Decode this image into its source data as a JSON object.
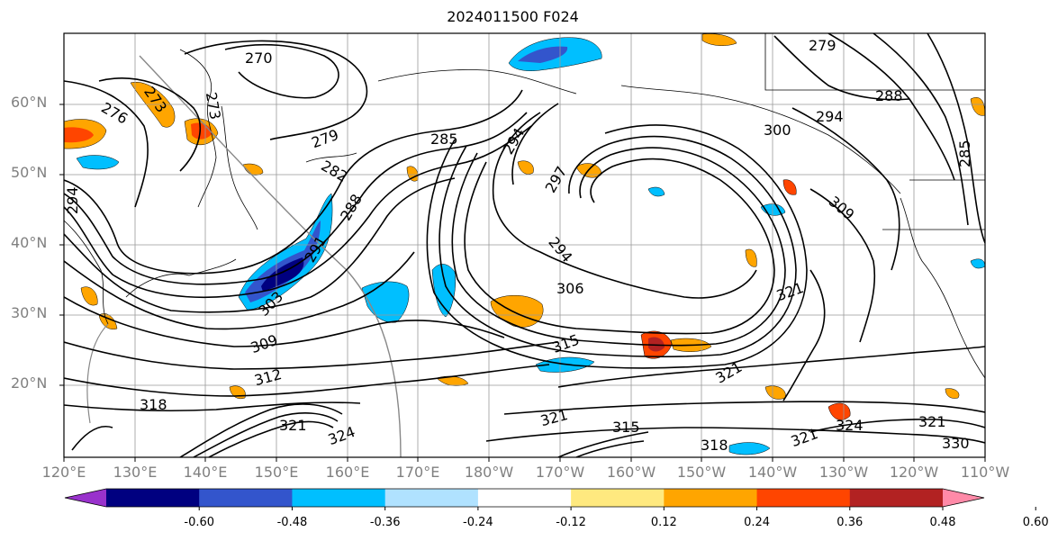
{
  "title": "2024011500 F024",
  "lat_labels": [
    "60°N",
    "50°N",
    "40°N",
    "30°N",
    "20°N"
  ],
  "lon_labels": [
    "120°E",
    "130°E",
    "140°E",
    "150°E",
    "160°E",
    "170°E",
    "180°W",
    "170°W",
    "160°W",
    "150°W",
    "140°W",
    "130°W",
    "120°W",
    "110°W"
  ],
  "contour_labels": [
    "270",
    "273",
    "276",
    "273",
    "279",
    "282",
    "285",
    "288",
    "291",
    "294",
    "297",
    "294",
    "300",
    "303",
    "306",
    "309",
    "312",
    "315",
    "318",
    "321",
    "321",
    "324",
    "294",
    "279",
    "288",
    "294",
    "285",
    "309",
    "321",
    "321",
    "321",
    "318",
    "324",
    "321",
    "330",
    "315"
  ],
  "colorbar": {
    "colors": [
      "#9932cc",
      "#000080",
      "#3355cc",
      "#00bfff",
      "#b0e2ff",
      "#ffffff",
      "#ffe97f",
      "#ffa500",
      "#ff4500",
      "#b22222",
      "#ff8aa8"
    ],
    "tick_labels": [
      "-0.60",
      "-0.48",
      "-0.36",
      "-0.24",
      "-0.12",
      "0.12",
      "0.24",
      "0.36",
      "0.48",
      "0.60"
    ]
  }
}
